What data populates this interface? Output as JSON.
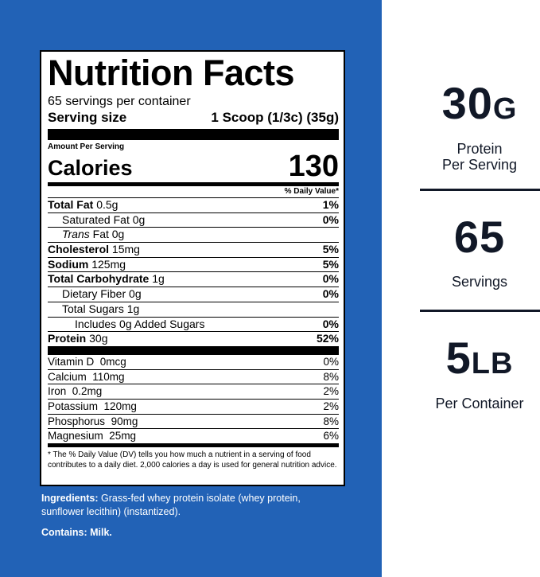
{
  "label": {
    "title": "Nutrition Facts",
    "servings": "65 servings per container",
    "serving_size_label": "Serving size",
    "serving_size": "1 Scoop (1/3c) (35g)",
    "amount_per_serving": "Amount Per Serving",
    "calories_label": "Calories",
    "calories": "130",
    "dv_header": "% Daily Value*",
    "nutrients": [
      {
        "name": "Total Fat",
        "amount": "0.5g",
        "dv": "1%"
      },
      {
        "name": "Saturated Fat",
        "amount": "0g",
        "dv": "0%"
      },
      {
        "name_italic": "Trans",
        "name": "Fat",
        "amount": "0g"
      },
      {
        "name": "Cholesterol",
        "amount": "15mg",
        "dv": "5%"
      },
      {
        "name": "Sodium",
        "amount": "125mg",
        "dv": "5%"
      },
      {
        "name": "Total Carbohydrate",
        "amount": "1g",
        "dv": "0%"
      },
      {
        "name": "Dietary Fiber",
        "amount": "0g",
        "dv": "0%"
      },
      {
        "name": "Total Sugars",
        "amount": "1g"
      },
      {
        "name": "Includes 0g Added Sugars",
        "dv": "0%"
      },
      {
        "name": "Protein",
        "amount": "30g",
        "dv": "52%"
      }
    ],
    "vitamins": [
      {
        "name": "Vitamin D",
        "amount": "0mcg",
        "dv": "0%"
      },
      {
        "name": "Calcium",
        "amount": "110mg",
        "dv": "8%"
      },
      {
        "name": "Iron",
        "amount": "0.2mg",
        "dv": "2%"
      },
      {
        "name": "Potassium",
        "amount": "120mg",
        "dv": "2%"
      },
      {
        "name": "Phosphorus",
        "amount": "90mg",
        "dv": "8%"
      },
      {
        "name": "Magnesium",
        "amount": "25mg",
        "dv": "6%"
      }
    ],
    "footnote": "* The % Daily Value (DV) tells you how much a nutrient in a serving of food contributes to a daily diet. 2,000 calories a day is used for general nutrition advice."
  },
  "ingredients": {
    "label": "Ingredients:",
    "text": "Grass-fed whey protein isolate (whey protein, sunflower lecithin) (instantized).",
    "contains": "Contains: Milk."
  },
  "stats": [
    {
      "value": "30",
      "unit": "G",
      "lines": [
        "Protein",
        "Per Serving"
      ]
    },
    {
      "value": "65",
      "lines": [
        "Servings"
      ]
    },
    {
      "value": "5",
      "unit": "LB",
      "lines": [
        "Per Container"
      ]
    }
  ]
}
